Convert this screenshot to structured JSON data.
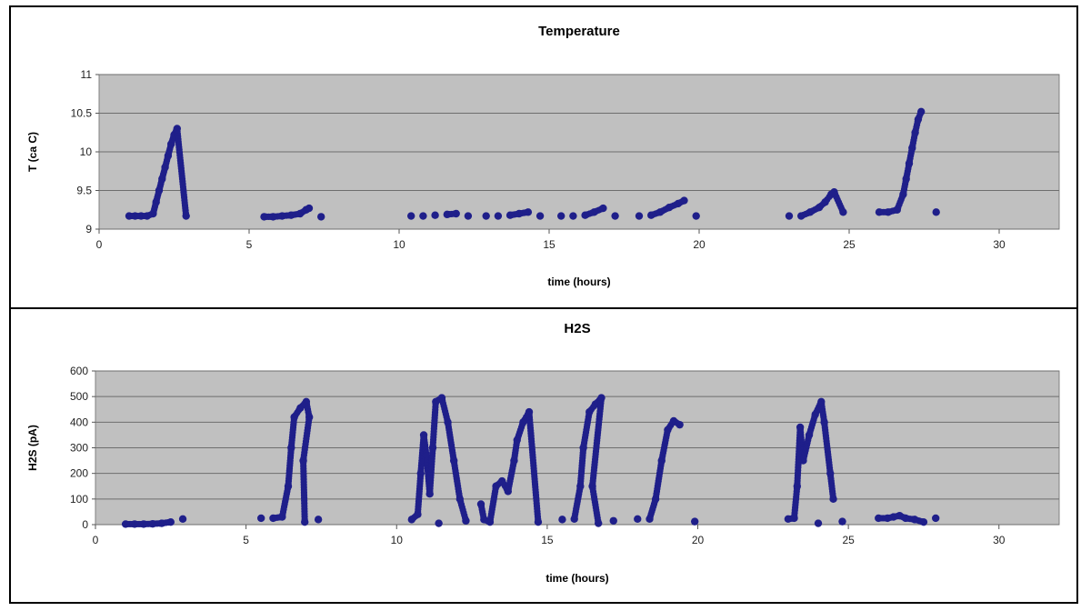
{
  "chart_data": [
    {
      "type": "scatter",
      "title": "Temperature",
      "xlabel": "time (hours)",
      "ylabel": "T (ca C)",
      "xlim": [
        0,
        32
      ],
      "ylim": [
        9,
        11
      ],
      "xticks": [
        0,
        5,
        10,
        15,
        20,
        25,
        30
      ],
      "yticks": [
        9,
        9.5,
        10,
        10.5,
        11
      ],
      "grid": true,
      "marker_color": "#1f1f8a",
      "plot_background": "#c0c0c0",
      "series": [
        {
          "points": [
            [
              1.0,
              9.17
            ],
            [
              1.2,
              9.17
            ],
            [
              1.4,
              9.17
            ],
            [
              1.6,
              9.17
            ],
            [
              1.8,
              9.2
            ],
            [
              1.9,
              9.35
            ],
            [
              2.0,
              9.5
            ],
            [
              2.1,
              9.65
            ],
            [
              2.2,
              9.8
            ],
            [
              2.3,
              9.95
            ],
            [
              2.4,
              10.1
            ],
            [
              2.5,
              10.22
            ],
            [
              2.6,
              10.3
            ],
            [
              2.9,
              9.17
            ],
            [
              5.5,
              9.16
            ],
            [
              5.8,
              9.16
            ],
            [
              6.1,
              9.17
            ],
            [
              6.4,
              9.18
            ],
            [
              6.7,
              9.2
            ],
            [
              6.9,
              9.25
            ],
            [
              7.0,
              9.27
            ],
            [
              7.4,
              9.16
            ],
            [
              10.4,
              9.17
            ],
            [
              10.8,
              9.17
            ],
            [
              11.2,
              9.18
            ],
            [
              11.6,
              9.19
            ],
            [
              11.9,
              9.2
            ],
            [
              12.3,
              9.17
            ],
            [
              12.9,
              9.17
            ],
            [
              13.3,
              9.17
            ],
            [
              13.7,
              9.18
            ],
            [
              14.0,
              9.2
            ],
            [
              14.3,
              9.22
            ],
            [
              14.7,
              9.17
            ],
            [
              15.4,
              9.17
            ],
            [
              15.8,
              9.17
            ],
            [
              16.2,
              9.18
            ],
            [
              16.5,
              9.22
            ],
            [
              16.8,
              9.27
            ],
            [
              17.2,
              9.17
            ],
            [
              18.0,
              9.17
            ],
            [
              18.4,
              9.18
            ],
            [
              18.7,
              9.22
            ],
            [
              19.0,
              9.28
            ],
            [
              19.3,
              9.33
            ],
            [
              19.5,
              9.37
            ],
            [
              19.9,
              9.17
            ],
            [
              23.0,
              9.17
            ],
            [
              23.4,
              9.17
            ],
            [
              23.7,
              9.22
            ],
            [
              24.0,
              9.28
            ],
            [
              24.2,
              9.35
            ],
            [
              24.4,
              9.45
            ],
            [
              24.5,
              9.48
            ],
            [
              24.8,
              9.22
            ],
            [
              26.0,
              9.22
            ],
            [
              26.3,
              9.22
            ],
            [
              26.6,
              9.25
            ],
            [
              26.8,
              9.45
            ],
            [
              26.9,
              9.65
            ],
            [
              27.0,
              9.85
            ],
            [
              27.1,
              10.05
            ],
            [
              27.2,
              10.25
            ],
            [
              27.3,
              10.42
            ],
            [
              27.4,
              10.52
            ],
            [
              27.9,
              9.22
            ]
          ]
        }
      ]
    },
    {
      "type": "scatter",
      "title": "H2S",
      "xlabel": "time (hours)",
      "ylabel": "H2S (pA)",
      "xlim": [
        0,
        32
      ],
      "ylim": [
        0,
        600
      ],
      "xticks": [
        0,
        5,
        10,
        15,
        20,
        25,
        30
      ],
      "yticks": [
        0,
        100,
        200,
        300,
        400,
        500,
        600
      ],
      "grid": true,
      "marker_color": "#1f1f8a",
      "plot_background": "#c0c0c0",
      "series": [
        {
          "points": [
            [
              1.0,
              2
            ],
            [
              1.3,
              2
            ],
            [
              1.6,
              2
            ],
            [
              1.9,
              3
            ],
            [
              2.2,
              5
            ],
            [
              2.5,
              10
            ],
            [
              2.9,
              22
            ],
            [
              5.5,
              25
            ],
            [
              5.9,
              25
            ],
            [
              6.2,
              30
            ],
            [
              6.4,
              150
            ],
            [
              6.5,
              300
            ],
            [
              6.6,
              420
            ],
            [
              6.8,
              455
            ],
            [
              7.0,
              480
            ],
            [
              7.1,
              420
            ],
            [
              6.9,
              250
            ],
            [
              6.95,
              10
            ],
            [
              7.4,
              20
            ],
            [
              10.5,
              20
            ],
            [
              10.7,
              40
            ],
            [
              10.8,
              200
            ],
            [
              10.9,
              350
            ],
            [
              11.0,
              260
            ],
            [
              11.1,
              120
            ],
            [
              11.2,
              300
            ],
            [
              11.3,
              480
            ],
            [
              11.5,
              495
            ],
            [
              11.7,
              400
            ],
            [
              11.9,
              250
            ],
            [
              12.1,
              100
            ],
            [
              12.3,
              15
            ],
            [
              11.4,
              5
            ],
            [
              12.8,
              80
            ],
            [
              12.9,
              20
            ],
            [
              13.1,
              10
            ],
            [
              13.3,
              150
            ],
            [
              13.5,
              170
            ],
            [
              13.7,
              130
            ],
            [
              13.9,
              250
            ],
            [
              14.0,
              330
            ],
            [
              14.2,
              400
            ],
            [
              14.4,
              440
            ],
            [
              14.7,
              10
            ],
            [
              15.5,
              20
            ],
            [
              15.9,
              22
            ],
            [
              16.1,
              150
            ],
            [
              16.2,
              300
            ],
            [
              16.4,
              440
            ],
            [
              16.6,
              470
            ],
            [
              16.8,
              495
            ],
            [
              16.5,
              150
            ],
            [
              16.7,
              5
            ],
            [
              17.2,
              15
            ],
            [
              18.0,
              22
            ],
            [
              18.4,
              22
            ],
            [
              18.6,
              100
            ],
            [
              18.8,
              250
            ],
            [
              19.0,
              370
            ],
            [
              19.2,
              405
            ],
            [
              19.4,
              390
            ],
            [
              19.9,
              12
            ],
            [
              23.0,
              22
            ],
            [
              23.2,
              25
            ],
            [
              23.3,
              150
            ],
            [
              23.4,
              380
            ],
            [
              23.5,
              250
            ],
            [
              23.7,
              350
            ],
            [
              23.9,
              430
            ],
            [
              24.1,
              480
            ],
            [
              24.2,
              400
            ],
            [
              24.4,
              200
            ],
            [
              24.5,
              100
            ],
            [
              24.0,
              5
            ],
            [
              24.8,
              12
            ],
            [
              26.0,
              25
            ],
            [
              26.3,
              25
            ],
            [
              26.5,
              30
            ],
            [
              26.7,
              35
            ],
            [
              26.9,
              25
            ],
            [
              27.2,
              20
            ],
            [
              27.5,
              10
            ],
            [
              27.9,
              25
            ]
          ]
        }
      ]
    }
  ]
}
